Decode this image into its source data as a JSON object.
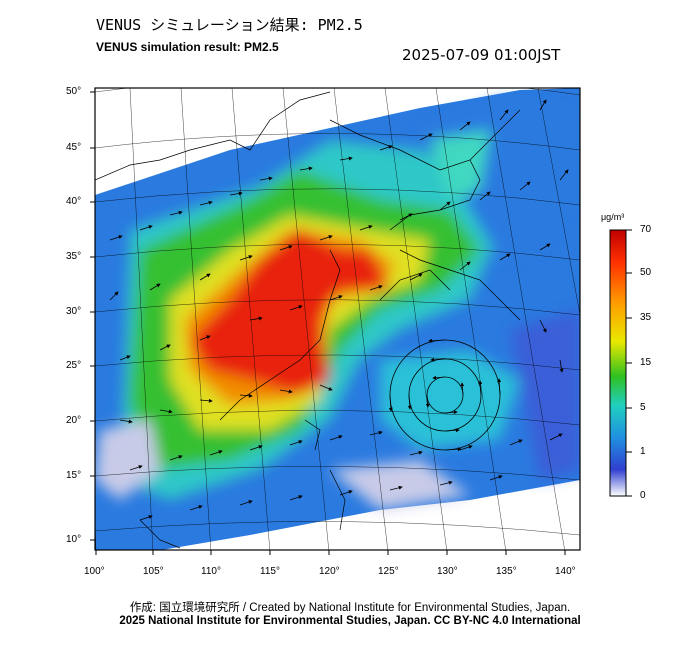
{
  "title_jp": "VENUS シミュレーション結果: PM2.5",
  "title_en": "VENUS simulation result: PM2.5",
  "timestamp": "2025-07-09 01:00JST",
  "lat_labels": [
    "50°",
    "45°",
    "40°",
    "35°",
    "30°",
    "25°",
    "20°",
    "15°",
    "10°"
  ],
  "lon_labels": [
    "100°",
    "105°",
    "110°",
    "115°",
    "120°",
    "125°",
    "130°",
    "135°",
    "140°"
  ],
  "colorbar": {
    "unit": "μg/m³",
    "ticks": [
      "70",
      "50",
      "35",
      "15",
      "5",
      "1",
      "0"
    ]
  },
  "footer_credit": "作成: 国立環境研究所 / Created by National Institute for Environmental Studies, Japan.",
  "footer_license": "2025 National Institute for Environmental Studies, Japan. CC BY-NC 4.0 International",
  "colors": {
    "very_high": "#e02010",
    "high": "#f08a00",
    "mid_high": "#e8e000",
    "mid": "#30c020",
    "low_mid": "#20c8c8",
    "low": "#2070e0",
    "very_low": "#c8cbe8"
  }
}
